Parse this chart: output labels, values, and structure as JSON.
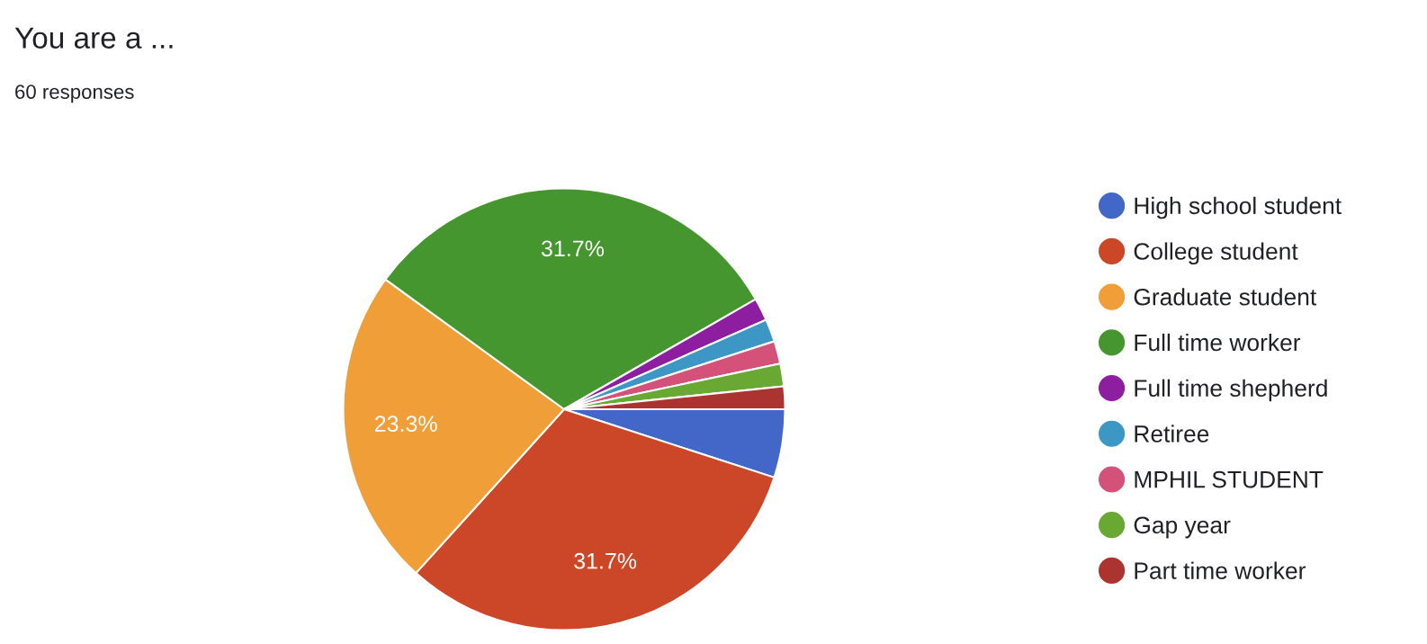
{
  "chart_data": {
    "type": "pie",
    "title": "You are a ...",
    "subtitle": "60 responses",
    "categories": [
      "High school student",
      "College student",
      "Graduate student",
      "Full time worker",
      "Full time shepherd",
      "Retiree",
      "MPHIL STUDENT",
      "Gap year",
      "Part time worker"
    ],
    "values": [
      5,
      31.7,
      23.3,
      31.7,
      1.66,
      1.66,
      1.66,
      1.66,
      1.66
    ],
    "value_labels": [
      null,
      "31.7%",
      "23.3%",
      "31.7%",
      null,
      null,
      null,
      null,
      null
    ],
    "colors": [
      "#4267c8",
      "#cc4727",
      "#f09e37",
      "#46962f",
      "#8e1ea0",
      "#3d97c4",
      "#d4527a",
      "#6aa834",
      "#ab3430"
    ],
    "legend": "right"
  }
}
